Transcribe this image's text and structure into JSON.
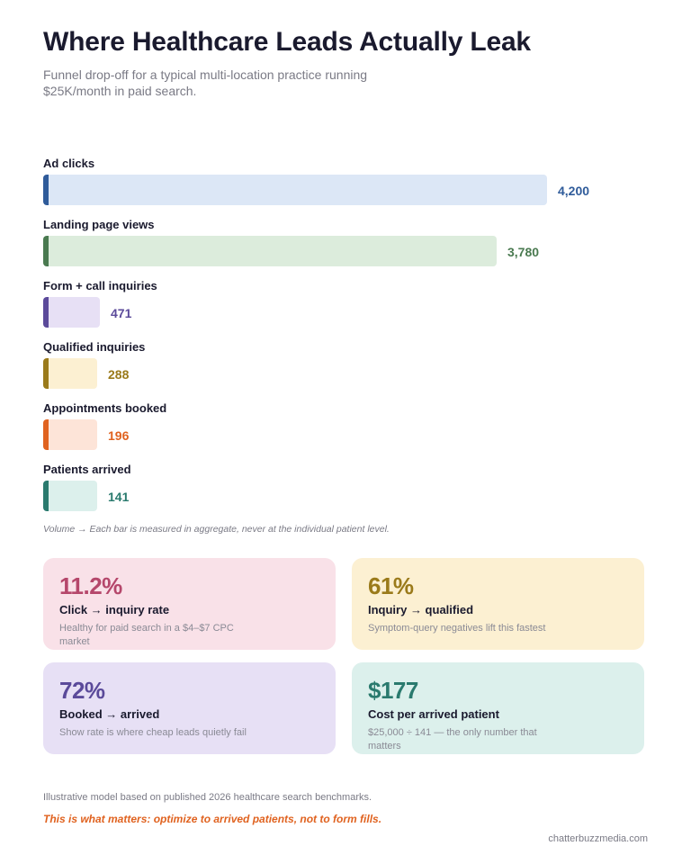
{
  "header": {
    "title": "Where Healthcare Leads Actually Leak",
    "subtitle": "Funnel drop-off for a typical multi-location practice running $25K/month in paid search."
  },
  "chart_data": {
    "type": "bar",
    "orientation": "horizontal",
    "categories": [
      "Ad clicks",
      "Landing page views",
      "Form + call inquiries",
      "Qualified inquiries",
      "Appointments booked",
      "Patients arrived"
    ],
    "values": [
      4200,
      3780,
      471,
      288,
      196,
      141
    ],
    "value_labels": [
      "4,200",
      "3,780",
      "471",
      "288",
      "196",
      "141"
    ],
    "colors": {
      "accent": [
        "#2f5b9a",
        "#4a7a50",
        "#5b4a9a",
        "#9a7a1a",
        "#e0621f",
        "#2a7a6e"
      ],
      "fill": [
        "#dce7f6",
        "#dcecdc",
        "#e7e0f5",
        "#fcf0d2",
        "#fde4d8",
        "#dcf0ec"
      ],
      "text": [
        "#2f5b9a",
        "#4a7a50",
        "#5b4a9a",
        "#9a7a1a",
        "#e0621f",
        "#2a7a6e"
      ]
    },
    "grid": false,
    "legend": "none",
    "xlim": [
      0,
      4200
    ]
  },
  "note": "Volume → Each bar is measured in aggregate, never at the individual patient level.",
  "cards": [
    {
      "metric": "11.2%",
      "title": "Click → inquiry rate",
      "desc": "Healthy for paid search in a $4–$7 CPC market",
      "bg": "#f9e1e8",
      "color": "#b5476b"
    },
    {
      "metric": "61%",
      "title": "Inquiry → qualified",
      "desc": "Symptom-query negatives lift this fastest",
      "bg": "#fcf0d2",
      "color": "#9a7a1a"
    },
    {
      "metric": "72%",
      "title": "Booked → arrived",
      "desc": "Show rate is where cheap leads quietly fail",
      "bg": "#e7e0f5",
      "color": "#5b4a9a"
    },
    {
      "metric": "$177",
      "title": "Cost per arrived patient",
      "desc": "$25,000 ÷ 141 — the only number that matters",
      "bg": "#dcf0ec",
      "color": "#2a7a6e"
    }
  ],
  "footer": {
    "footnote": "Illustrative model based on published 2026 healthcare search benchmarks.",
    "emphasis": "This is what matters: optimize to arrived patients, not to form fills.",
    "site": "chatterbuzzmedia.com"
  }
}
